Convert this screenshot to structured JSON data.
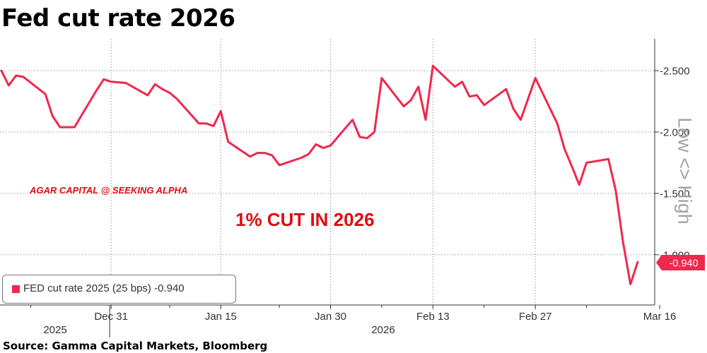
{
  "title": "Fed cut rate 2026",
  "source": "Source: Gamma Capital Markets, Bloomberg",
  "watermark": "AGAR CAPITAL @ SEEKING ALPHA",
  "annotation": "1% CUT IN 2026",
  "side_label": "Low <> High",
  "legend": {
    "label": "FED cut rate 2025 (25 bps)",
    "value": "-0.940"
  },
  "last_value_label": "-0.940",
  "colors": {
    "series": "#f0274e",
    "annotation": "#e10b10",
    "grid": "#999999"
  },
  "chart_data": {
    "type": "line",
    "title": "Fed cut rate 2026",
    "x_tick_labels": [
      "Dec 31",
      "Jan 15",
      "Jan 30",
      "Feb 13",
      "Feb 27",
      "Mar 16"
    ],
    "year_labels": [
      "2025",
      "2026"
    ],
    "y_tick_labels": [
      "-2.500",
      "-2.000",
      "-1.500",
      "-1.000"
    ],
    "y_ticks": [
      -2.5,
      -2.0,
      -1.5,
      -1.0
    ],
    "ylim": [
      -0.59,
      -2.76
    ],
    "y_axis_reversed": true,
    "grid": true,
    "legend_position": "bottom-left",
    "series": [
      {
        "name": "FED cut rate 2025 (25 bps)",
        "last_value": -0.94,
        "points": [
          [
            "2025-12-16",
            -2.5
          ],
          [
            "2025-12-17",
            -2.38
          ],
          [
            "2025-12-18",
            -2.46
          ],
          [
            "2025-12-19",
            -2.45
          ],
          [
            "2025-12-22",
            -2.31
          ],
          [
            "2025-12-23",
            -2.13
          ],
          [
            "2025-12-24",
            -2.04
          ],
          [
            "2025-12-26",
            -2.04
          ],
          [
            "2025-12-29",
            -2.34
          ],
          [
            "2025-12-30",
            -2.43
          ],
          [
            "2025-12-31",
            -2.41
          ],
          [
            "2026-01-02",
            -2.4
          ],
          [
            "2026-01-05",
            -2.3
          ],
          [
            "2026-01-06",
            -2.39
          ],
          [
            "2026-01-07",
            -2.35
          ],
          [
            "2026-01-08",
            -2.32
          ],
          [
            "2026-01-09",
            -2.27
          ],
          [
            "2026-01-12",
            -2.07
          ],
          [
            "2026-01-13",
            -2.07
          ],
          [
            "2026-01-14",
            -2.05
          ],
          [
            "2026-01-15",
            -2.17
          ],
          [
            "2026-01-16",
            -1.92
          ],
          [
            "2026-01-19",
            -1.8
          ],
          [
            "2026-01-20",
            -1.83
          ],
          [
            "2026-01-21",
            -1.83
          ],
          [
            "2026-01-22",
            -1.81
          ],
          [
            "2026-01-23",
            -1.73
          ],
          [
            "2026-01-26",
            -1.79
          ],
          [
            "2026-01-27",
            -1.82
          ],
          [
            "2026-01-28",
            -1.9
          ],
          [
            "2026-01-29",
            -1.87
          ],
          [
            "2026-01-30",
            -1.89
          ],
          [
            "2026-02-02",
            -2.1
          ],
          [
            "2026-02-03",
            -1.96
          ],
          [
            "2026-02-04",
            -1.95
          ],
          [
            "2026-02-05",
            -2.0
          ],
          [
            "2026-02-06",
            -2.44
          ],
          [
            "2026-02-09",
            -2.21
          ],
          [
            "2026-02-10",
            -2.26
          ],
          [
            "2026-02-11",
            -2.37
          ],
          [
            "2026-02-12",
            -2.1
          ],
          [
            "2026-02-13",
            -2.54
          ],
          [
            "2026-02-16",
            -2.37
          ],
          [
            "2026-02-17",
            -2.41
          ],
          [
            "2026-02-18",
            -2.29
          ],
          [
            "2026-02-19",
            -2.3
          ],
          [
            "2026-02-20",
            -2.22
          ],
          [
            "2026-02-23",
            -2.35
          ],
          [
            "2026-02-24",
            -2.19
          ],
          [
            "2026-02-25",
            -2.1
          ],
          [
            "2026-02-27",
            -2.44
          ],
          [
            "2026-03-02",
            -2.07
          ],
          [
            "2026-03-03",
            -1.86
          ],
          [
            "2026-03-04",
            -1.72
          ],
          [
            "2026-03-05",
            -1.57
          ],
          [
            "2026-03-06",
            -1.75
          ],
          [
            "2026-03-09",
            -1.78
          ],
          [
            "2026-03-10",
            -1.52
          ],
          [
            "2026-03-11",
            -1.1
          ],
          [
            "2026-03-12",
            -0.76
          ],
          [
            "2026-03-13",
            -0.94
          ]
        ]
      }
    ]
  }
}
